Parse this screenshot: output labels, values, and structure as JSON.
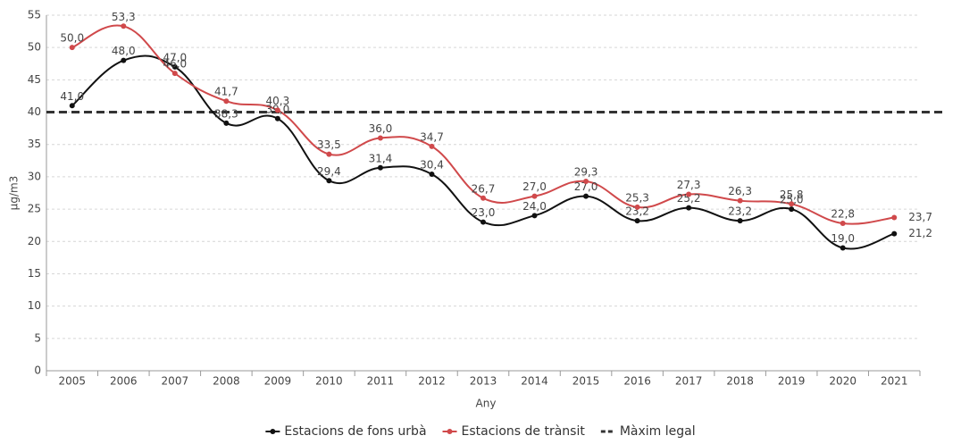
{
  "chart_data": {
    "type": "line",
    "x_label": "Any",
    "y_label": "µg/m3",
    "categories": [
      "2005",
      "2006",
      "2007",
      "2008",
      "2009",
      "2010",
      "2011",
      "2012",
      "2013",
      "2014",
      "2015",
      "2016",
      "2017",
      "2018",
      "2019",
      "2020",
      "2021"
    ],
    "series": [
      {
        "name": "Estacions de fons urbà",
        "color": "#111111",
        "values": [
          41.0,
          48.0,
          47.0,
          38.3,
          39.0,
          29.4,
          31.4,
          30.4,
          23.0,
          24.0,
          27.0,
          23.2,
          25.2,
          23.2,
          25.0,
          19.0,
          21.2
        ],
        "value_labels": [
          "41,0",
          "48,0",
          "47,0",
          "38,3",
          "39,0",
          "29,4",
          "31,4",
          "30,4",
          "23,0",
          "24,0",
          "27,0",
          "23,2",
          "25,2",
          "23,2",
          "25,0",
          "19,0",
          "21,2"
        ]
      },
      {
        "name": "Estacions de trànsit",
        "color": "#d0494b",
        "values": [
          50.0,
          53.3,
          46.0,
          41.7,
          40.3,
          33.5,
          36.0,
          34.7,
          26.7,
          27.0,
          29.3,
          25.3,
          27.3,
          26.3,
          25.8,
          22.8,
          23.7
        ],
        "value_labels": [
          "50,0",
          "53,3",
          "46,0",
          "41,7",
          "40,3",
          "33,5",
          "36,0",
          "34,7",
          "26,7",
          "27,0",
          "29,3",
          "25,3",
          "27,3",
          "26,3",
          "25,8",
          "22,8",
          "23,7"
        ]
      }
    ],
    "reference_line": {
      "name": "Màxim legal",
      "value": 40,
      "color": "#333333"
    },
    "ylim": [
      0,
      55
    ],
    "yticks": [
      0,
      5,
      10,
      15,
      20,
      25,
      30,
      35,
      40,
      45,
      50,
      55
    ],
    "grid": true,
    "legend": "bottom"
  }
}
